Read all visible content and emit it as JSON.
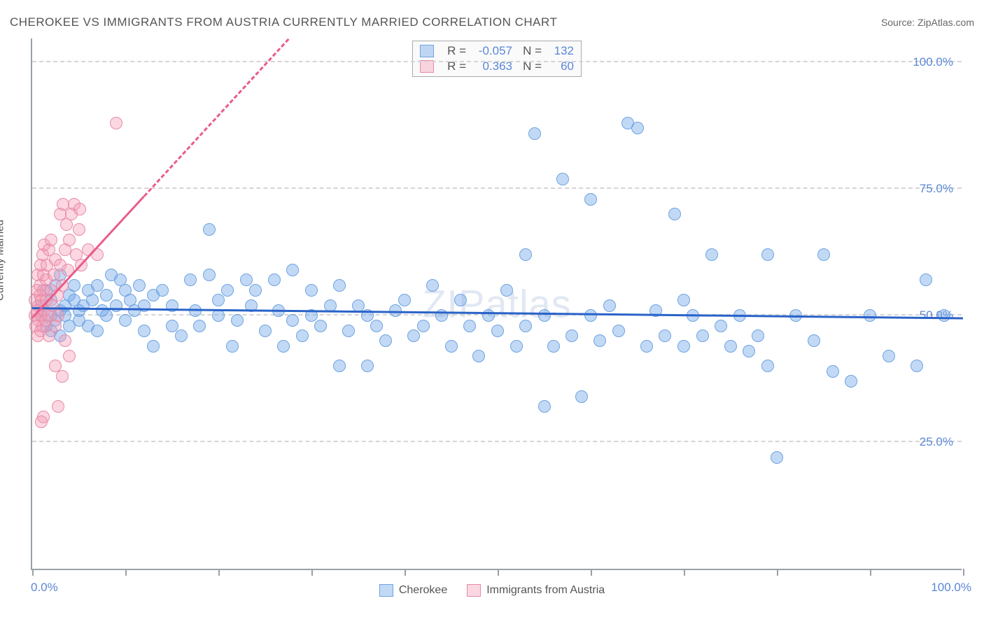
{
  "title": "CHEROKEE VS IMMIGRANTS FROM AUSTRIA CURRENTLY MARRIED CORRELATION CHART",
  "source": "Source: ZipAtlas.com",
  "ylabel": "Currently Married",
  "watermark": "ZIPatlas",
  "axes": {
    "xlim": [
      0,
      100
    ],
    "ylim": [
      0,
      105
    ],
    "x_min_label": "0.0%",
    "x_max_label": "100.0%",
    "y_gridlines": [
      25,
      50,
      75,
      100
    ],
    "y_labels": [
      "25.0%",
      "50.0%",
      "75.0%",
      "100.0%"
    ],
    "x_ticks": [
      0,
      10,
      20,
      30,
      40,
      50,
      60,
      70,
      80,
      90,
      100
    ],
    "grid_color": "#d5d5d5",
    "axis_color": "#98a0a8",
    "value_color": "#5b87d6"
  },
  "legend": {
    "series1_name": "Cherokee",
    "series2_name": "Immigrants from Austria"
  },
  "stats": {
    "s1": {
      "r_label": "R =",
      "r": "-0.057",
      "n_label": "N =",
      "n": "132"
    },
    "s2": {
      "r_label": "R =",
      "r": "0.363",
      "n_label": "N =",
      "n": "60"
    }
  },
  "series": [
    {
      "name": "Cherokee",
      "fill": "rgba(120,170,235,0.45)",
      "stroke": "#6ea3e0",
      "marker_r": 9,
      "trend": {
        "y_at_x0": 52,
        "y_at_x100": 50,
        "color": "#2a63c8",
        "width": 3,
        "dash": false,
        "extent": 100
      },
      "points": [
        [
          1,
          50
        ],
        [
          1,
          52
        ],
        [
          1.5,
          48
        ],
        [
          1.5,
          55
        ],
        [
          2,
          47
        ],
        [
          2,
          53
        ],
        [
          2,
          50
        ],
        [
          2.5,
          56
        ],
        [
          2.5,
          49
        ],
        [
          3,
          51
        ],
        [
          3,
          58
        ],
        [
          3,
          46
        ],
        [
          3.5,
          52
        ],
        [
          3.5,
          50
        ],
        [
          4,
          54
        ],
        [
          4,
          48
        ],
        [
          4.5,
          53
        ],
        [
          4.5,
          56
        ],
        [
          5,
          49
        ],
        [
          5,
          51
        ],
        [
          5.5,
          52
        ],
        [
          6,
          55
        ],
        [
          6,
          48
        ],
        [
          6.5,
          53
        ],
        [
          7,
          56
        ],
        [
          7,
          47
        ],
        [
          7.5,
          51
        ],
        [
          8,
          54
        ],
        [
          8,
          50
        ],
        [
          8.5,
          58
        ],
        [
          9,
          52
        ],
        [
          9.5,
          57
        ],
        [
          10,
          49
        ],
        [
          10,
          55
        ],
        [
          10.5,
          53
        ],
        [
          11,
          51
        ],
        [
          11.5,
          56
        ],
        [
          12,
          47
        ],
        [
          12,
          52
        ],
        [
          13,
          54
        ],
        [
          13,
          44
        ],
        [
          14,
          55
        ],
        [
          15,
          48
        ],
        [
          15,
          52
        ],
        [
          16,
          46
        ],
        [
          17,
          57
        ],
        [
          17.5,
          51
        ],
        [
          18,
          48
        ],
        [
          19,
          58
        ],
        [
          19,
          67
        ],
        [
          20,
          53
        ],
        [
          20,
          50
        ],
        [
          21,
          55
        ],
        [
          21.5,
          44
        ],
        [
          22,
          49
        ],
        [
          23,
          57
        ],
        [
          23.5,
          52
        ],
        [
          24,
          55
        ],
        [
          25,
          47
        ],
        [
          26,
          57
        ],
        [
          26.5,
          51
        ],
        [
          27,
          44
        ],
        [
          28,
          59
        ],
        [
          28,
          49
        ],
        [
          29,
          46
        ],
        [
          30,
          55
        ],
        [
          30,
          50
        ],
        [
          31,
          48
        ],
        [
          32,
          52
        ],
        [
          33,
          40
        ],
        [
          33,
          56
        ],
        [
          34,
          47
        ],
        [
          35,
          52
        ],
        [
          36,
          40
        ],
        [
          36,
          50
        ],
        [
          37,
          48
        ],
        [
          38,
          45
        ],
        [
          39,
          51
        ],
        [
          40,
          53
        ],
        [
          41,
          46
        ],
        [
          42,
          48
        ],
        [
          43,
          56
        ],
        [
          44,
          50
        ],
        [
          45,
          44
        ],
        [
          46,
          53
        ],
        [
          47,
          48
        ],
        [
          48,
          42
        ],
        [
          49,
          50
        ],
        [
          50,
          47
        ],
        [
          51,
          55
        ],
        [
          52,
          44
        ],
        [
          53,
          62
        ],
        [
          53,
          48
        ],
        [
          54,
          86
        ],
        [
          55,
          32
        ],
        [
          55,
          50
        ],
        [
          56,
          44
        ],
        [
          57,
          77
        ],
        [
          58,
          46
        ],
        [
          59,
          34
        ],
        [
          60,
          73
        ],
        [
          60,
          50
        ],
        [
          61,
          45
        ],
        [
          62,
          52
        ],
        [
          63,
          47
        ],
        [
          64,
          88
        ],
        [
          65,
          87
        ],
        [
          66,
          44
        ],
        [
          67,
          51
        ],
        [
          68,
          46
        ],
        [
          69,
          70
        ],
        [
          70,
          44
        ],
        [
          70,
          53
        ],
        [
          71,
          50
        ],
        [
          72,
          46
        ],
        [
          73,
          62
        ],
        [
          74,
          48
        ],
        [
          75,
          44
        ],
        [
          76,
          50
        ],
        [
          77,
          43
        ],
        [
          78,
          46
        ],
        [
          79,
          62
        ],
        [
          79,
          40
        ],
        [
          80,
          22
        ],
        [
          82,
          50
        ],
        [
          84,
          45
        ],
        [
          85,
          62
        ],
        [
          86,
          39
        ],
        [
          88,
          37
        ],
        [
          90,
          50
        ],
        [
          92,
          42
        ],
        [
          95,
          40
        ],
        [
          96,
          57
        ],
        [
          98,
          50
        ]
      ]
    },
    {
      "name": "Immigrants from Austria",
      "fill": "rgba(245,155,180,0.40)",
      "stroke": "#e88aa8",
      "marker_r": 9,
      "trend": {
        "y_at_x0": 50,
        "y_at_x100": 250,
        "color": "#e85d8a",
        "width": 3,
        "dash": true,
        "extent": 28,
        "solid_extent": 12
      },
      "points": [
        [
          0.3,
          50
        ],
        [
          0.3,
          53
        ],
        [
          0.4,
          48
        ],
        [
          0.5,
          55
        ],
        [
          0.5,
          51
        ],
        [
          0.6,
          58
        ],
        [
          0.6,
          46
        ],
        [
          0.7,
          52
        ],
        [
          0.7,
          49
        ],
        [
          0.8,
          56
        ],
        [
          0.8,
          54
        ],
        [
          0.9,
          60
        ],
        [
          0.9,
          47
        ],
        [
          1.0,
          53
        ],
        [
          1.0,
          50
        ],
        [
          1.1,
          62
        ],
        [
          1.1,
          48
        ],
        [
          1.2,
          55
        ],
        [
          1.2,
          58
        ],
        [
          1.3,
          51
        ],
        [
          1.3,
          64
        ],
        [
          1.4,
          49
        ],
        [
          1.5,
          57
        ],
        [
          1.5,
          53
        ],
        [
          1.6,
          60
        ],
        [
          1.7,
          50
        ],
        [
          1.8,
          63
        ],
        [
          1.8,
          46
        ],
        [
          2.0,
          55
        ],
        [
          2.0,
          65
        ],
        [
          2.2,
          52
        ],
        [
          2.3,
          58
        ],
        [
          2.5,
          48
        ],
        [
          2.5,
          61
        ],
        [
          2.7,
          54
        ],
        [
          2.8,
          50
        ],
        [
          3.0,
          60
        ],
        [
          3.0,
          70
        ],
        [
          3.2,
          56
        ],
        [
          3.3,
          72
        ],
        [
          3.5,
          63
        ],
        [
          3.7,
          68
        ],
        [
          3.8,
          59
        ],
        [
          4.0,
          65
        ],
        [
          4.2,
          70
        ],
        [
          4.5,
          72
        ],
        [
          4.7,
          62
        ],
        [
          5.0,
          67
        ],
        [
          5.1,
          71
        ],
        [
          5.3,
          60
        ],
        [
          3.5,
          45
        ],
        [
          4.0,
          42
        ],
        [
          2.5,
          40
        ],
        [
          1.2,
          30
        ],
        [
          1.0,
          29
        ],
        [
          2.8,
          32
        ],
        [
          3.2,
          38
        ],
        [
          6,
          63
        ],
        [
          7,
          62
        ],
        [
          9,
          88
        ]
      ]
    }
  ]
}
